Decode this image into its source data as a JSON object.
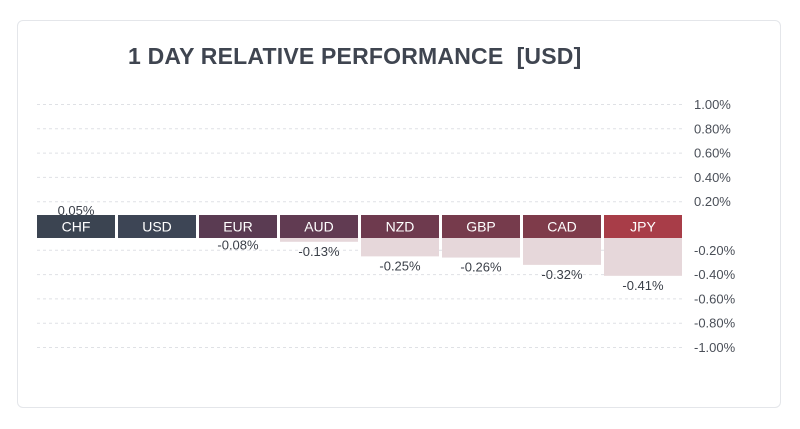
{
  "chart_data": {
    "type": "bar",
    "title": "1 DAY RELATIVE PERFORMANCE  [USD]",
    "categories": [
      "CHF",
      "USD",
      "EUR",
      "AUD",
      "NZD",
      "GBP",
      "CAD",
      "JPY"
    ],
    "values": [
      0.05,
      0.0,
      -0.08,
      -0.13,
      -0.25,
      -0.26,
      -0.32,
      -0.41
    ],
    "value_labels": [
      "0.05%",
      "",
      "-0.08%",
      "-0.13%",
      "-0.25%",
      "-0.26%",
      "-0.32%",
      "-0.41%"
    ],
    "ylim": [
      -1.0,
      1.0
    ],
    "yticks": [
      1.0,
      0.8,
      0.6,
      0.4,
      0.2,
      -0.2,
      -0.4,
      -0.6,
      -0.8,
      -1.0
    ],
    "ytick_labels": [
      "1.00%",
      "0.80%",
      "0.60%",
      "0.40%",
      "0.20%",
      "-0.20%",
      "-0.40%",
      "-0.60%",
      "-0.80%",
      "-1.00%"
    ],
    "grid": true,
    "category_colors": [
      "#3b4451",
      "#3d4555",
      "#5a3b52",
      "#613b52",
      "#6e3a4e",
      "#763b4c",
      "#7e3b4a",
      "#a83d48"
    ],
    "bar_fill_positive": "#e2e4e8",
    "bar_fill_negative": "#e6d7da"
  }
}
